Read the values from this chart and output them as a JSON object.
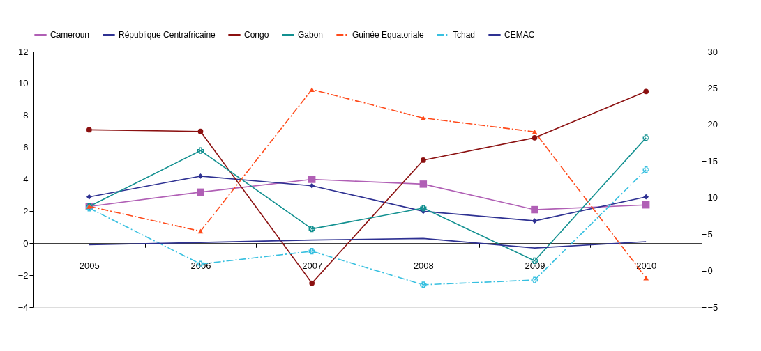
{
  "chart_data": {
    "type": "line",
    "categories": [
      "2005",
      "2006",
      "2007",
      "2008",
      "2009",
      "2010"
    ],
    "series": [
      {
        "name": "Cameroun",
        "color": "#b05fb5",
        "marker": "square",
        "line_style": "solid",
        "values": [
          2.3,
          3.2,
          4.0,
          3.7,
          2.1,
          2.4
        ]
      },
      {
        "name": "République Centrafricaine",
        "color": "#2e3192",
        "marker": "diamond",
        "line_style": "solid",
        "values": [
          2.9,
          4.2,
          3.6,
          2.0,
          1.4,
          2.9
        ]
      },
      {
        "name": "Congo",
        "color": "#8b1010",
        "marker": "circle",
        "line_style": "solid",
        "values": [
          7.1,
          7.0,
          -2.5,
          5.2,
          6.6,
          9.5
        ]
      },
      {
        "name": "Gabon",
        "color": "#129090",
        "marker": "cross",
        "line_style": "solid",
        "values": [
          2.3,
          5.8,
          0.9,
          2.2,
          -1.1,
          6.6
        ]
      },
      {
        "name": "Guinée Equatoriale",
        "color": "#ff4a1a",
        "marker": "triangle",
        "line_style": "dashed",
        "axis": "y2",
        "values": [
          8.8,
          5.4,
          24.8,
          20.9,
          19.0,
          -1.0
        ]
      },
      {
        "name": "Tchad",
        "color": "#38c0e0",
        "marker": "cross",
        "line_style": "dashed",
        "values": [
          2.2,
          -1.3,
          -0.5,
          -2.6,
          -2.3,
          4.6
        ]
      },
      {
        "name": "CEMAC",
        "color": "#2e3192",
        "marker": "none",
        "line_style": "solid",
        "values": [
          -0.1,
          0.05,
          0.2,
          0.3,
          -0.3,
          0.1
        ]
      }
    ],
    "ylim": [
      -4,
      12
    ],
    "yticks": [
      -4,
      -2,
      0,
      2,
      4,
      6,
      8,
      10,
      12
    ],
    "y2lim": [
      -5,
      30
    ],
    "y2ticks": [
      -5,
      0,
      5,
      10,
      15,
      20,
      25,
      30
    ],
    "grid": false,
    "legend": "top"
  }
}
